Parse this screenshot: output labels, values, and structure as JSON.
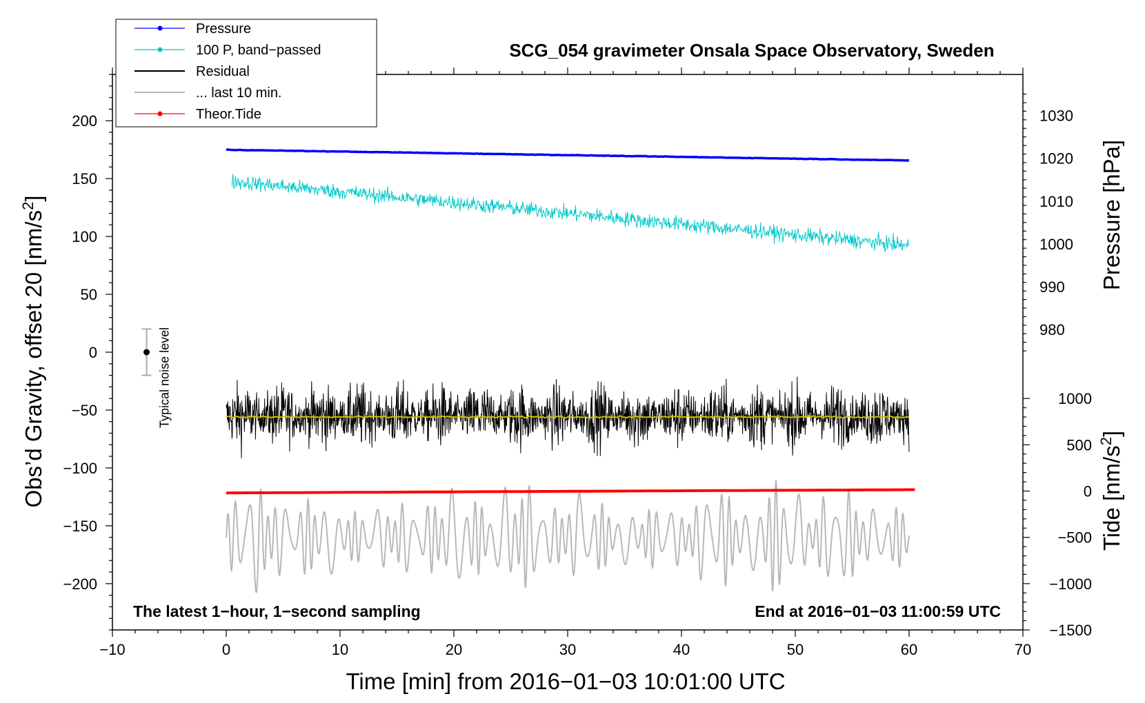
{
  "chart_data": {
    "type": "line",
    "title": "SCG_054 gravimeter Onsala Space Observatory, Sweden",
    "xlabel": "Time [min] from 2016−01−03 10:01:00 UTC",
    "ylabel_left": "Obs’d Gravity, offset 20 [nm/s",
    "ylabel_left_sup": "2",
    "ylabel_left_end": "]",
    "ylabel_right_pressure": "Pressure [hPa]",
    "ylabel_right_tide": "Tide [nm/s",
    "ylabel_right_tide_sup": "2",
    "ylabel_right_tide_end": "]",
    "xlim": [
      -10,
      70
    ],
    "ylim_left": [
      -240,
      240
    ],
    "x_ticks": [
      "−10",
      "0",
      "10",
      "20",
      "30",
      "40",
      "50",
      "60",
      "70"
    ],
    "x_tick_values": [
      -10,
      0,
      10,
      20,
      30,
      40,
      50,
      60,
      70
    ],
    "y_ticks_left": [
      "200",
      "150",
      "100",
      "50",
      "0",
      "−50",
      "−100",
      "−150",
      "−200"
    ],
    "y_tick_values_left": [
      200,
      150,
      100,
      50,
      0,
      -50,
      -100,
      -150,
      -200
    ],
    "pressure_axis": {
      "ticks": [
        "1030",
        "1020",
        "1010",
        "1000",
        "990",
        "980"
      ],
      "tick_values": [
        1030,
        1020,
        1010,
        1000,
        990,
        980
      ],
      "left_value_map": [
        [
          1030,
          204.5
        ],
        [
          980,
          19.6
        ]
      ]
    },
    "tide_axis": {
      "ticks": [
        "1000",
        "500",
        "0",
        "−500",
        "−1000",
        "−1500"
      ],
      "tick_values": [
        1000,
        500,
        0,
        -500,
        -1000,
        -1500
      ],
      "left_value_map": [
        [
          1000,
          -40
        ],
        [
          -1500,
          -240
        ]
      ]
    },
    "series": [
      {
        "name": "Pressure",
        "axis": "pressure",
        "color": "#0000ff",
        "start": 1022.0,
        "end": 1019.5
      },
      {
        "name": "100 P, band−passed",
        "axis": "left",
        "color": "#00c8c8",
        "start": 148,
        "end": 92,
        "noise": 14
      },
      {
        "name": "Residual",
        "axis": "left",
        "color": "#000000",
        "center": -55,
        "noise": 55
      },
      {
        "name": "... last 10 min.",
        "axis": "left",
        "color": "#b8b8b8",
        "center": -160,
        "noise": 50
      },
      {
        "name": "Theor.Tide",
        "axis": "tide",
        "color": "#ff0000",
        "start": -20,
        "end": 15
      },
      {
        "name": "residual mean",
        "axis": "left",
        "color": "#c8c800",
        "center": -56
      }
    ],
    "series_time_range": [
      0,
      60
    ],
    "legend": {
      "placement": "top-left",
      "entries": [
        {
          "label": "Pressure",
          "color": "#0000ff",
          "marker": true
        },
        {
          "label": "100 P, band−passed",
          "color": "#00c8c8",
          "marker": true
        },
        {
          "label": "Residual",
          "color": "#000000",
          "marker": false
        },
        {
          "label": "... last 10 min.",
          "color": "#b8b8b8",
          "marker": false
        },
        {
          "label": "Theor.Tide",
          "color": "#ff0000",
          "marker": true
        }
      ]
    },
    "noise_bar": {
      "label": "Typical noise level",
      "x": -7,
      "center": 0,
      "half_range": 20
    },
    "annotations": {
      "bottom_left": "The latest 1−hour, 1−second sampling",
      "bottom_right": "End at 2016−01−03 11:00:59 UTC"
    }
  }
}
